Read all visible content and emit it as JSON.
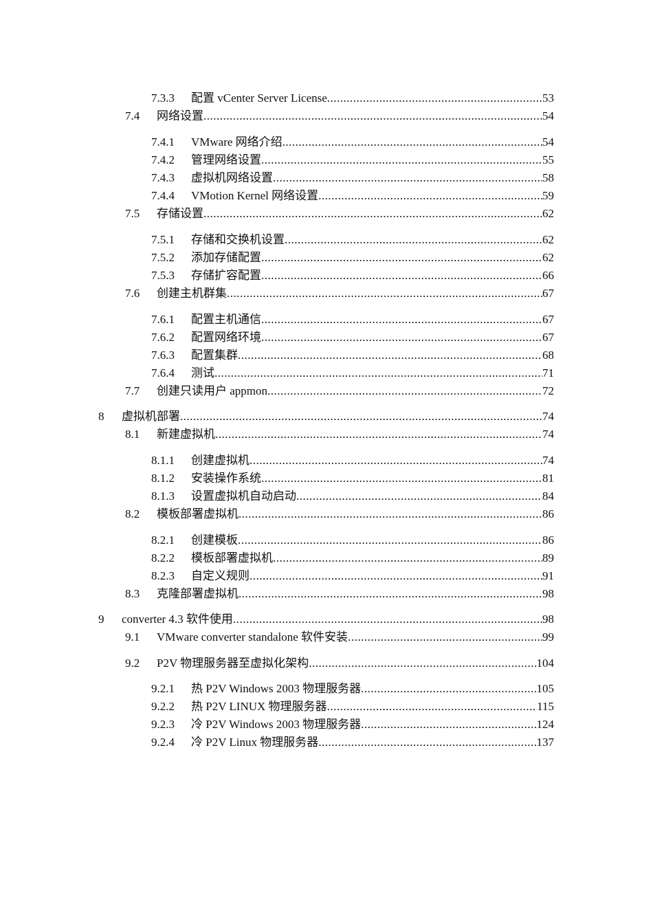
{
  "toc": [
    {
      "level": 3,
      "number": "7.3.3",
      "title": "配置 vCenter Server License",
      "page": "53"
    },
    {
      "level": 2,
      "number": "7.4",
      "title": "网络设置",
      "page": "54"
    },
    {
      "level": 3,
      "number": "7.4.1",
      "title": "VMware 网络介绍",
      "page": "54"
    },
    {
      "level": 3,
      "number": "7.4.2",
      "title": "管理网络设置",
      "page": "55"
    },
    {
      "level": 3,
      "number": "7.4.3",
      "title": "虚拟机网络设置",
      "page": "58"
    },
    {
      "level": 3,
      "number": "7.4.4",
      "title": "VMotion Kernel 网络设置",
      "page": "59"
    },
    {
      "level": 2,
      "number": "7.5",
      "title": "存储设置",
      "page": "62"
    },
    {
      "level": 3,
      "number": "7.5.1",
      "title": "存储和交换机设置",
      "page": "62"
    },
    {
      "level": 3,
      "number": "7.5.2",
      "title": "添加存储配置",
      "page": "62"
    },
    {
      "level": 3,
      "number": "7.5.3",
      "title": "存储扩容配置",
      "page": "66"
    },
    {
      "level": 2,
      "number": "7.6",
      "title": "创建主机群集",
      "page": "67"
    },
    {
      "level": 3,
      "number": "7.6.1",
      "title": "配置主机通信",
      "page": "67"
    },
    {
      "level": 3,
      "number": "7.6.2",
      "title": "配置网络环境",
      "page": "67"
    },
    {
      "level": 3,
      "number": "7.6.3",
      "title": "配置集群",
      "page": "68"
    },
    {
      "level": 3,
      "number": "7.6.4",
      "title": "测试",
      "page": "71"
    },
    {
      "level": 2,
      "number": "7.7",
      "title": "创建只读用户 appmon",
      "page": "72"
    },
    {
      "level": 1,
      "number": "8",
      "title": "虚拟机部署",
      "page": "74"
    },
    {
      "level": 2,
      "number": "8.1",
      "title": "新建虚拟机",
      "page": "74"
    },
    {
      "level": 3,
      "number": "8.1.1",
      "title": "创建虚拟机",
      "page": "74"
    },
    {
      "level": 3,
      "number": "8.1.2",
      "title": "安装操作系统",
      "page": "81"
    },
    {
      "level": 3,
      "number": "8.1.3",
      "title": "设置虚拟机自动启动",
      "page": "84"
    },
    {
      "level": 2,
      "number": "8.2",
      "title": "模板部署虚拟机",
      "page": "86"
    },
    {
      "level": 3,
      "number": "8.2.1",
      "title": "创建模板",
      "page": "86"
    },
    {
      "level": 3,
      "number": "8.2.2",
      "title": "模板部署虚拟机",
      "page": "89"
    },
    {
      "level": 3,
      "number": "8.2.3",
      "title": "自定义规则",
      "page": "91"
    },
    {
      "level": 2,
      "number": "8.3",
      "title": "克隆部署虚拟机",
      "page": "98"
    },
    {
      "level": 1,
      "number": "9",
      "title": "converter 4.3 软件使用",
      "page": "98"
    },
    {
      "level": 2,
      "number": "9.1",
      "title": "VMware converter standalone 软件安装",
      "page": "99"
    },
    {
      "level": 2,
      "number": "9.2",
      "title": "P2V 物理服务器至虚拟化架构",
      "page": "104"
    },
    {
      "level": 3,
      "number": "9.2.1",
      "title": "热 P2V Windows 2003 物理服务器",
      "page": "105"
    },
    {
      "level": 3,
      "number": "9.2.2",
      "title": "热 P2V LINUX 物理服务器",
      "page": "115"
    },
    {
      "level": 3,
      "number": "9.2.3",
      "title": "冷 P2V Windows 2003 物理服务器",
      "page": "124"
    },
    {
      "level": 3,
      "number": "9.2.4",
      "title": "冷 P2V Linux 物理服务器",
      "page": "137"
    }
  ]
}
